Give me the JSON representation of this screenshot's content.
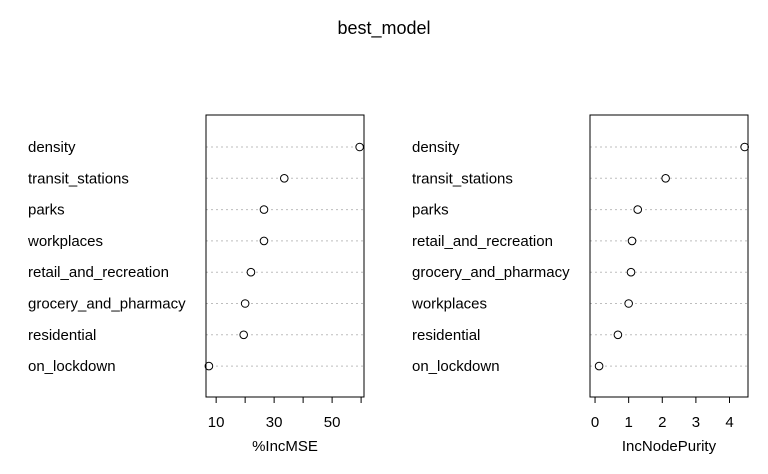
{
  "title": "best_model",
  "chart_data": [
    {
      "type": "scatter",
      "xlabel": "%IncMSE",
      "xlim": [
        6.5,
        61
      ],
      "xticks": [
        10,
        30,
        50
      ],
      "minor_ticks": [
        20,
        40,
        60
      ],
      "categories": [
        "density",
        "transit_stations",
        "parks",
        "workplaces",
        "retail_and_recreation",
        "grocery_and_pharmacy",
        "residential",
        "on_lockdown"
      ],
      "values": [
        59.5,
        33.5,
        26.5,
        26.5,
        22,
        20,
        19.5,
        7.5
      ],
      "grid": "dotted horizontal guides"
    },
    {
      "type": "scatter",
      "xlabel": "IncNodePurity",
      "xlim": [
        -0.15,
        4.55
      ],
      "xticks": [
        0,
        1,
        2,
        3,
        4
      ],
      "minor_ticks": [],
      "categories": [
        "density",
        "transit_stations",
        "parks",
        "retail_and_recreation",
        "grocery_and_pharmacy",
        "workplaces",
        "residential",
        "on_lockdown"
      ],
      "values": [
        4.45,
        2.1,
        1.27,
        1.1,
        1.07,
        1.0,
        0.68,
        0.12
      ],
      "grid": "dotted horizontal guides"
    }
  ]
}
